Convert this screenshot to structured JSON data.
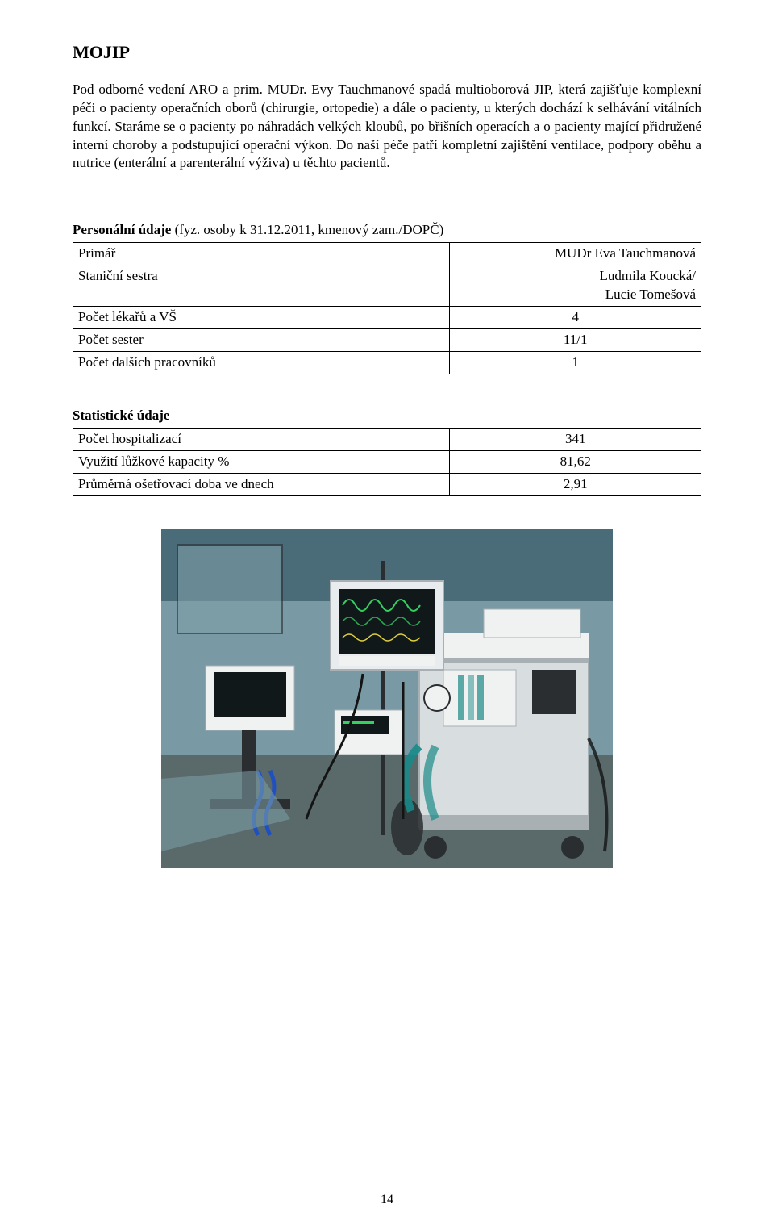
{
  "page": {
    "title": "MOJIP",
    "body_paragraph": "Pod odborné vedení ARO a prim. MUDr. Evy Tauchmanové spadá multioborová JIP, která zajišťuje komplexní péči o pacienty operačních oborů (chirurgie, ortopedie) a dále o pacienty, u kterých dochází k selhávání vitálních funkcí. Staráme se o pacienty po náhradách velkých kloubů, po břišních operacích a o pacienty mající přidružené interní choroby a podstupující operační výkon. Do naší péče patří kompletní zajištění ventilace, podpory oběhu a nutrice (enterální a parenterální výživa) u těchto pacientů.",
    "page_number": "14"
  },
  "personnel": {
    "heading_bold": "Personální údaje",
    "heading_rest": " (fyz. osoby k 31.12.2011, kmenový zam./DOPČ)",
    "rows": [
      {
        "label": "Primář",
        "value": "MUDr Eva Tauchmanová",
        "align": "right"
      },
      {
        "label": "Staniční sestra",
        "value": "Ludmila Koucká/\nLucie Tomešová",
        "align": "right"
      },
      {
        "label": "Počet lékařů a VŠ",
        "value": "4",
        "align": "center"
      },
      {
        "label": "Počet sester",
        "value": "11/1",
        "align": "center"
      },
      {
        "label": "Počet dalších pracovníků",
        "value": "1",
        "align": "center"
      }
    ]
  },
  "stats": {
    "heading_bold": "Statistické údaje",
    "rows": [
      {
        "label": "Počet hospitalizací",
        "value": "341",
        "align": "center"
      },
      {
        "label": "Využití lůžkové kapacity  %",
        "value": "81,62",
        "align": "center"
      },
      {
        "label": "Průměrná ošetřovací doba ve dnech",
        "value": "2,91",
        "align": "center"
      }
    ]
  },
  "photo": {
    "alt": "icu-anesthesia-machine-photo",
    "colors": {
      "wall_top": "#4a6b78",
      "wall_mid": "#7ea0a8",
      "floor": "#5a6a6a",
      "machine_body": "#d8dde0",
      "machine_shadow": "#a8b0b4",
      "screen_frame": "#e8ecee",
      "screen_black": "#10181a",
      "trace_green": "#35d060",
      "trace_yellow": "#e0d040",
      "cable_blue": "#2050c0",
      "cable_black": "#141414",
      "hose_teal": "#1a8a88",
      "white_panel": "#f0f2f2",
      "dark_metal": "#2a2e30"
    }
  }
}
